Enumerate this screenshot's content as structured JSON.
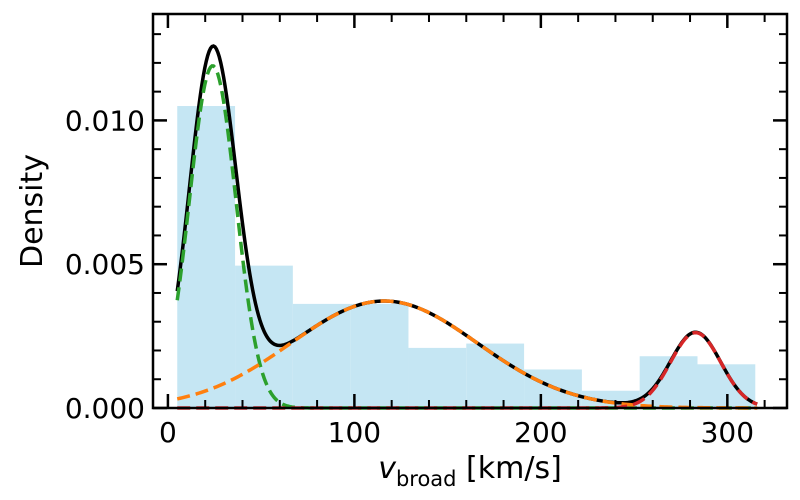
{
  "chart_data": {
    "type": "histogram",
    "xlabel_main": "v",
    "xlabel_sub": "broad",
    "xlabel_unit": " [km/s]",
    "ylabel": "Density",
    "xlim": [
      -8,
      332
    ],
    "ylim": [
      0,
      0.0137
    ],
    "xticks": [
      0,
      100,
      200,
      300
    ],
    "xtick_labels": [
      "0",
      "100",
      "200",
      "300"
    ],
    "yticks": [
      0,
      0.005,
      0.01
    ],
    "ytick_labels": [
      "0.000",
      "0.005",
      "0.010"
    ],
    "x_minor_step": 20,
    "y_minor_step": 0.001,
    "histogram": {
      "color": "#c5e6f3",
      "bin_edges": [
        5,
        36,
        67,
        98,
        129,
        160,
        191,
        222,
        253,
        284,
        315
      ],
      "density": [
        0.0105,
        0.00495,
        0.00362,
        0.00362,
        0.00209,
        0.00224,
        0.00134,
        0.0006,
        0.0018,
        0.00152
      ]
    },
    "components": [
      {
        "color": "#2ca02c",
        "style": "dashed",
        "mu": 24,
        "sigma": 12.5,
        "amplitude": 0.0119
      },
      {
        "color": "#ff7f0e",
        "style": "dashed",
        "mu": 116,
        "sigma": 50,
        "amplitude": 0.00372
      },
      {
        "color": "#d62728",
        "style": "dashed",
        "mu": 283,
        "sigma": 13.5,
        "amplitude": 0.00262
      }
    ],
    "total_curve": {
      "color": "#000000",
      "style": "solid"
    },
    "curve_x_range": [
      5,
      316
    ]
  }
}
